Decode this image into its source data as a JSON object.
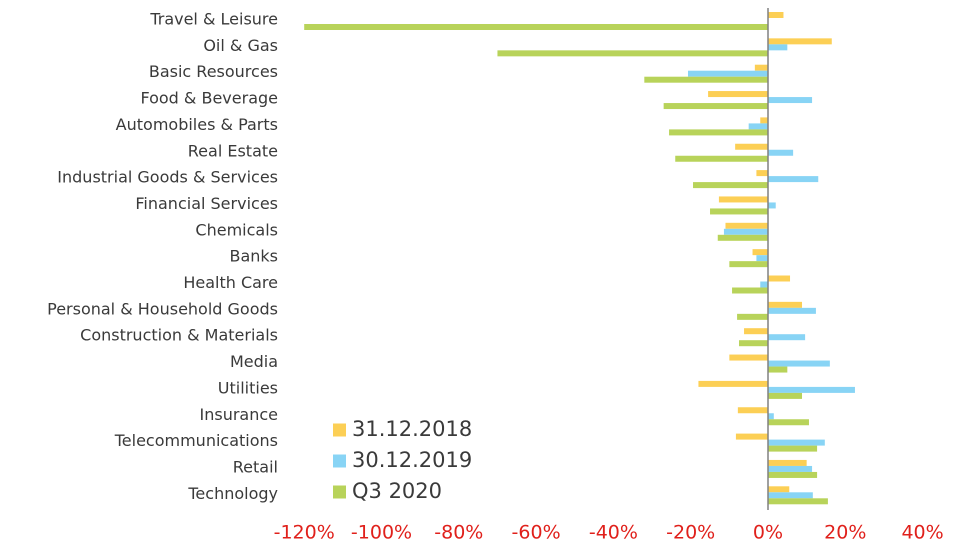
{
  "chart_data": {
    "type": "bar",
    "orientation": "horizontal",
    "categories": [
      "Travel & Leisure",
      "Oil & Gas",
      "Basic Resources",
      "Food & Beverage",
      "Automobiles & Parts",
      "Real Estate",
      "Industrial Goods & Services",
      "Financial Services",
      "Chemicals",
      "Banks",
      "Health Care",
      "Personal & Household Goods",
      "Construction & Materials",
      "Media",
      "Utilities",
      "Insurance",
      "Telecommunications",
      "Retail",
      "Technology"
    ],
    "series": [
      {
        "name": "31.12.2018",
        "color": "#fccf55",
        "values": [
          4,
          16.5,
          -3.4,
          -15.5,
          -2,
          -8.5,
          -3,
          -12.7,
          -11,
          -4,
          5.7,
          8.8,
          -6.2,
          -10,
          -18,
          -7.8,
          -8.3,
          10,
          5.5
        ]
      },
      {
        "name": "30.12.2019",
        "color": "#88d4f5",
        "values": [
          0,
          5,
          -20.7,
          11.4,
          -5,
          6.5,
          13,
          2,
          -11.4,
          -3,
          -2,
          12.4,
          9.6,
          16,
          22.5,
          1.5,
          14.7,
          11.4,
          11.6
        ]
      },
      {
        "name": "Q3 2020",
        "color": "#b8d35a",
        "values": [
          -120,
          -70,
          -32,
          -27,
          -25.6,
          -24,
          -19.4,
          -15,
          -13,
          -10,
          -9.3,
          -8,
          -7.5,
          5,
          8.8,
          10.6,
          12.7,
          12.7,
          15.5
        ]
      }
    ],
    "xlim": [
      -120,
      40
    ],
    "xticks": [
      {
        "value": -120,
        "label": "-120%"
      },
      {
        "value": -100,
        "label": "-100%"
      },
      {
        "value": -80,
        "label": "-80%"
      },
      {
        "value": -60,
        "label": "-60%"
      },
      {
        "value": -40,
        "label": "-40%"
      },
      {
        "value": -20,
        "label": "-20%"
      },
      {
        "value": 0,
        "label": "0%"
      },
      {
        "value": 20,
        "label": "20%"
      },
      {
        "value": 40,
        "label": "40%"
      }
    ],
    "legend": "lower left"
  }
}
